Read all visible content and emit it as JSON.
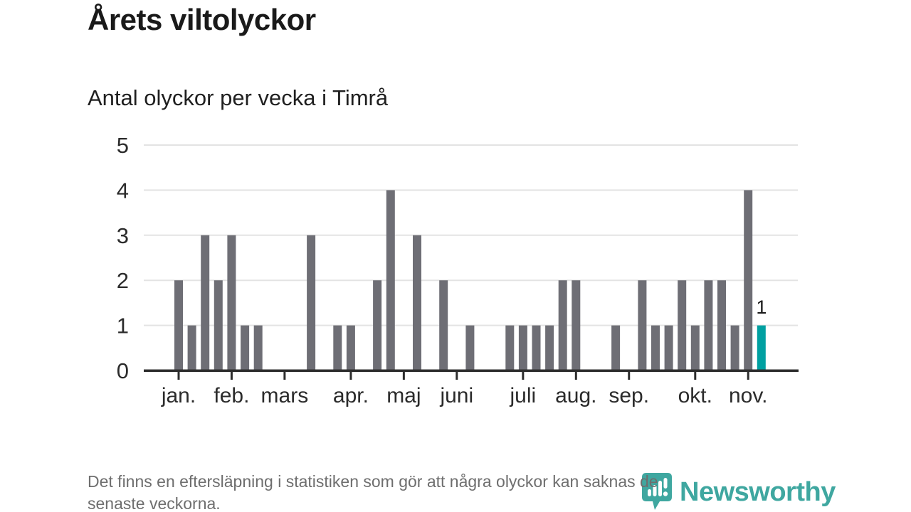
{
  "page": {
    "title": "Årets viltolyckor",
    "subtitle": "Antal olyckor per vecka i Timrå"
  },
  "chart_data": {
    "type": "bar",
    "title": "Årets viltolyckor",
    "subtitle": "Antal olyckor per vecka i Timrå",
    "x_unit": "week",
    "values": [
      2,
      1,
      3,
      2,
      3,
      1,
      1,
      0,
      0,
      0,
      3,
      0,
      1,
      1,
      0,
      2,
      4,
      0,
      3,
      0,
      2,
      0,
      1,
      0,
      0,
      1,
      1,
      1,
      1,
      2,
      2,
      0,
      0,
      1,
      0,
      2,
      1,
      1,
      2,
      1,
      2,
      2,
      1,
      4,
      1
    ],
    "x_tick_labels": [
      {
        "label": "jan.",
        "week": 1
      },
      {
        "label": "feb.",
        "week": 5
      },
      {
        "label": "mars",
        "week": 9
      },
      {
        "label": "apr.",
        "week": 14
      },
      {
        "label": "maj",
        "week": 18
      },
      {
        "label": "juni",
        "week": 22
      },
      {
        "label": "juli",
        "week": 27
      },
      {
        "label": "aug.",
        "week": 31
      },
      {
        "label": "sep.",
        "week": 35
      },
      {
        "label": "okt.",
        "week": 40
      },
      {
        "label": "nov.",
        "week": 44
      }
    ],
    "y_ticks": [
      0,
      1,
      2,
      3,
      4,
      5
    ],
    "ylim": [
      0,
      5
    ],
    "grid": true,
    "legend": "none",
    "bar_color": "#6e6e75",
    "highlight_color": "#00a0a1",
    "grid_color": "#e3e3e3",
    "axis_color": "#2d2d2d",
    "label_color": "#2b2b2b",
    "last_bar_label": "1"
  },
  "footer": {
    "lines": [
      "Det finns en eftersläpning i statistiken som gör att några olyckor kan saknas de",
      "senaste veckorna."
    ]
  },
  "logo": {
    "text": "Newsworthy"
  }
}
